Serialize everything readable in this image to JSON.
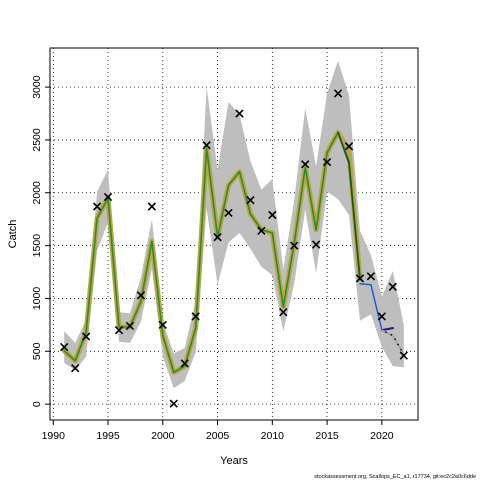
{
  "chart_data": {
    "type": "line",
    "title": "",
    "xlabel": "Years",
    "ylabel": "Catch",
    "xlim": [
      1989.7,
      2023.3
    ],
    "ylim": [
      -150,
      3370
    ],
    "x_ticks": [
      1990,
      1995,
      2000,
      2005,
      2010,
      2015,
      2020
    ],
    "y_ticks": [
      0,
      500,
      1000,
      1500,
      2000,
      2500,
      3000
    ],
    "grid": true,
    "caption": "stockassessment.org, Scallops_EC_a1, r17734, git:ec2c2a0c6dde",
    "observed": {
      "marker": "x",
      "points": [
        [
          1991,
          540
        ],
        [
          1992,
          340
        ],
        [
          1993,
          640
        ],
        [
          1994,
          1870
        ],
        [
          1995,
          1960
        ],
        [
          1996,
          700
        ],
        [
          1997,
          740
        ],
        [
          1998,
          1030
        ],
        [
          1999,
          1870
        ],
        [
          2000,
          750
        ],
        [
          2001,
          5
        ],
        [
          2002,
          385
        ],
        [
          2003,
          830
        ],
        [
          2004,
          2450
        ],
        [
          2005,
          1580
        ],
        [
          2006,
          1810
        ],
        [
          2007,
          2750
        ],
        [
          2008,
          1930
        ],
        [
          2009,
          1640
        ],
        [
          2010,
          1790
        ],
        [
          2011,
          870
        ],
        [
          2012,
          1500
        ],
        [
          2013,
          2270
        ],
        [
          2014,
          1510
        ],
        [
          2015,
          2290
        ],
        [
          2016,
          2940
        ],
        [
          2017,
          2440
        ],
        [
          2018,
          1190
        ],
        [
          2019,
          1210
        ],
        [
          2020,
          830
        ],
        [
          2021,
          1110
        ],
        [
          2022,
          460
        ]
      ]
    },
    "confidence_band": {
      "color": "#bebebe",
      "upper": [
        [
          1991,
          690
        ],
        [
          1992,
          580
        ],
        [
          1993,
          800
        ],
        [
          1994,
          2010
        ],
        [
          1995,
          2220
        ],
        [
          1996,
          870
        ],
        [
          1997,
          860
        ],
        [
          1998,
          1200
        ],
        [
          1999,
          1750
        ],
        [
          2000,
          780
        ],
        [
          2001,
          480
        ],
        [
          2002,
          530
        ],
        [
          2003,
          980
        ],
        [
          2004,
          3000
        ],
        [
          2005,
          2220
        ],
        [
          2006,
          2860
        ],
        [
          2007,
          2740
        ],
        [
          2008,
          2300
        ],
        [
          2009,
          2030
        ],
        [
          2010,
          2130
        ],
        [
          2011,
          1270
        ],
        [
          2012,
          1930
        ],
        [
          2013,
          2800
        ],
        [
          2014,
          2250
        ],
        [
          2015,
          2940
        ],
        [
          2016,
          3250
        ],
        [
          2017,
          2920
        ],
        [
          2018,
          1640
        ],
        [
          2019,
          1410
        ],
        [
          2020,
          1020
        ],
        [
          2021,
          1260
        ],
        [
          2022,
          750
        ]
      ],
      "lower": [
        [
          1991,
          390
        ],
        [
          1992,
          320
        ],
        [
          1993,
          450
        ],
        [
          1994,
          1450
        ],
        [
          1995,
          1720
        ],
        [
          1996,
          590
        ],
        [
          1997,
          580
        ],
        [
          1998,
          780
        ],
        [
          1999,
          1280
        ],
        [
          2000,
          450
        ],
        [
          2001,
          150
        ],
        [
          2002,
          220
        ],
        [
          2003,
          490
        ],
        [
          2004,
          1850
        ],
        [
          2005,
          1130
        ],
        [
          2006,
          1530
        ],
        [
          2007,
          1620
        ],
        [
          2008,
          1470
        ],
        [
          2009,
          1300
        ],
        [
          2010,
          1220
        ],
        [
          2011,
          690
        ],
        [
          2012,
          1140
        ],
        [
          2013,
          1840
        ],
        [
          2014,
          1240
        ],
        [
          2015,
          2010
        ],
        [
          2016,
          1940
        ],
        [
          2017,
          1790
        ],
        [
          2018,
          790
        ],
        [
          2019,
          850
        ],
        [
          2020,
          540
        ],
        [
          2021,
          360
        ],
        [
          2022,
          350
        ]
      ]
    },
    "series": [
      {
        "color": "#b8a642",
        "width": 5,
        "values": [
          [
            1991,
            505
          ],
          [
            1992,
            410
          ],
          [
            1993,
            680
          ],
          [
            1994,
            1760
          ],
          [
            1995,
            1950
          ],
          [
            1996,
            730
          ],
          [
            1997,
            730
          ],
          [
            1998,
            970
          ],
          [
            1999,
            1540
          ],
          [
            2000,
            650
          ],
          [
            2001,
            300
          ],
          [
            2002,
            360
          ],
          [
            2003,
            720
          ],
          [
            2004,
            2420
          ],
          [
            2005,
            1580
          ],
          [
            2006,
            2070
          ],
          [
            2007,
            2200
          ],
          [
            2008,
            1800
          ],
          [
            2009,
            1650
          ],
          [
            2010,
            1620
          ],
          [
            2011,
            920
          ],
          [
            2012,
            1520
          ],
          [
            2013,
            2240
          ],
          [
            2014,
            1650
          ],
          [
            2015,
            2380
          ],
          [
            2016,
            2570
          ],
          [
            2017,
            2400
          ],
          [
            2018,
            1180
          ]
        ]
      },
      {
        "color": "#2e8b2e",
        "width": 1.6,
        "values": [
          [
            1991,
            505
          ],
          [
            1992,
            410
          ],
          [
            1993,
            680
          ],
          [
            1994,
            1760
          ],
          [
            1995,
            1950
          ],
          [
            1996,
            730
          ],
          [
            1997,
            730
          ],
          [
            1998,
            970
          ],
          [
            1999,
            1540
          ],
          [
            2000,
            650
          ],
          [
            2001,
            300
          ],
          [
            2002,
            360
          ],
          [
            2003,
            720
          ],
          [
            2004,
            2420
          ],
          [
            2005,
            1580
          ],
          [
            2006,
            2070
          ],
          [
            2007,
            2200
          ],
          [
            2008,
            1800
          ],
          [
            2009,
            1650
          ],
          [
            2010,
            1620
          ],
          [
            2011,
            920
          ],
          [
            2012,
            1520
          ],
          [
            2013,
            2240
          ],
          [
            2014,
            1650
          ],
          [
            2015,
            2380
          ],
          [
            2016,
            2570
          ],
          [
            2017,
            2300
          ],
          [
            2018,
            1180
          ]
        ]
      },
      {
        "color": "#1e5a1e",
        "width": 1.8,
        "values": [
          [
            2016,
            2570
          ],
          [
            2017,
            2280
          ],
          [
            2018,
            1180
          ]
        ]
      },
      {
        "color": "#1f5fd6",
        "width": 1.5,
        "values": [
          [
            2018,
            1140
          ],
          [
            2019,
            1130
          ],
          [
            2020,
            700
          ]
        ]
      },
      {
        "color": "#2a1a8c",
        "width": 2.2,
        "values": [
          [
            2020,
            700
          ],
          [
            2021,
            720
          ]
        ]
      },
      {
        "color": "#000000",
        "width": 1.4,
        "values": [
          [
            2020,
            700
          ],
          [
            2021,
            650
          ],
          [
            2022,
            470
          ]
        ]
      },
      {
        "color": "#aaaaaa",
        "width": 1.6,
        "dash": "3,3",
        "values": [
          [
            2020,
            700
          ],
          [
            2021,
            650
          ],
          [
            2022,
            470
          ]
        ]
      }
    ]
  }
}
